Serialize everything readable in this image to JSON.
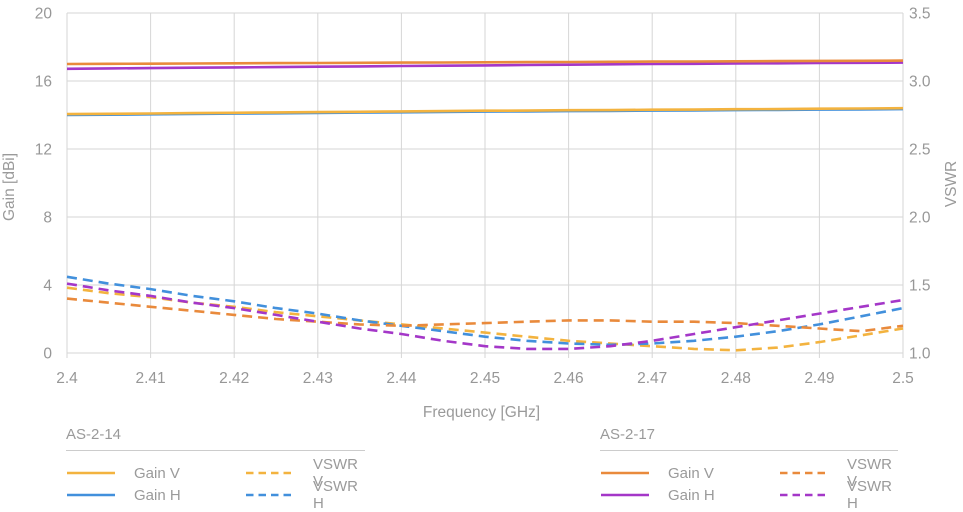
{
  "chart_data": {
    "type": "line",
    "xlabel": "Frequency [GHz]",
    "ylabel": "Gain [dBi]",
    "ylabel_right": "VSWR",
    "xlim": [
      2.4,
      2.5
    ],
    "ylim_left": [
      0,
      20
    ],
    "ylim_right": [
      1.0,
      3.5
    ],
    "grid": true,
    "x_ticks": [
      "2.4",
      "2.41",
      "2.42",
      "2.43",
      "2.44",
      "2.45",
      "2.46",
      "2.47",
      "2.48",
      "2.49",
      "2.5"
    ],
    "y_ticks_left": [
      "20",
      "16",
      "12",
      "8",
      "4",
      "0"
    ],
    "y_ticks_right": [
      "3.5",
      "3.0",
      "2.5",
      "2.0",
      "1.5",
      "1.0"
    ],
    "x": [
      2.4,
      2.405,
      2.41,
      2.415,
      2.42,
      2.425,
      2.43,
      2.435,
      2.44,
      2.445,
      2.45,
      2.455,
      2.46,
      2.465,
      2.47,
      2.475,
      2.48,
      2.485,
      2.49,
      2.495,
      2.5
    ],
    "series": [
      {
        "name": "AS-2-14 Gain V",
        "group": "AS-2-14",
        "label": "Gain V",
        "axis": "left",
        "style": "solid",
        "color": "#F3B33F",
        "values": [
          14.05,
          14.07,
          14.09,
          14.11,
          14.13,
          14.15,
          14.17,
          14.19,
          14.21,
          14.23,
          14.25,
          14.26,
          14.28,
          14.29,
          14.31,
          14.32,
          14.34,
          14.35,
          14.37,
          14.38,
          14.4
        ]
      },
      {
        "name": "AS-2-14 Gain H",
        "group": "AS-2-14",
        "label": "Gain H",
        "axis": "left",
        "style": "solid",
        "color": "#4290DC",
        "values": [
          14.0,
          14.02,
          14.04,
          14.06,
          14.08,
          14.1,
          14.12,
          14.14,
          14.16,
          14.18,
          14.2,
          14.21,
          14.23,
          14.24,
          14.26,
          14.27,
          14.29,
          14.3,
          14.32,
          14.33,
          14.35
        ]
      },
      {
        "name": "AS-2-17 Gain V",
        "group": "AS-2-17",
        "label": "Gain V",
        "axis": "left",
        "style": "solid",
        "color": "#E98A3C",
        "values": [
          17.0,
          17.01,
          17.02,
          17.03,
          17.04,
          17.05,
          17.06,
          17.07,
          17.08,
          17.09,
          17.1,
          17.11,
          17.12,
          17.13,
          17.14,
          17.15,
          17.16,
          17.17,
          17.18,
          17.19,
          17.2
        ]
      },
      {
        "name": "AS-2-17 Gain H",
        "group": "AS-2-17",
        "label": "Gain H",
        "axis": "left",
        "style": "solid",
        "color": "#A437C8",
        "values": [
          16.72,
          16.74,
          16.76,
          16.78,
          16.8,
          16.82,
          16.84,
          16.86,
          16.88,
          16.9,
          16.92,
          16.94,
          16.96,
          16.98,
          17.0,
          17.01,
          17.03,
          17.04,
          17.06,
          17.07,
          17.08
        ]
      },
      {
        "name": "AS-2-14 VSWR V",
        "group": "AS-2-14",
        "label": "VSWR V",
        "axis": "right",
        "style": "dashed",
        "color": "#F3B33F",
        "values": [
          1.48,
          1.44,
          1.41,
          1.37,
          1.34,
          1.3,
          1.27,
          1.24,
          1.21,
          1.18,
          1.15,
          1.12,
          1.09,
          1.07,
          1.05,
          1.03,
          1.02,
          1.04,
          1.08,
          1.13,
          1.18
        ]
      },
      {
        "name": "AS-2-14 VSWR H",
        "group": "AS-2-14",
        "label": "VSWR H",
        "axis": "right",
        "style": "dashed",
        "color": "#4290DC",
        "values": [
          1.56,
          1.51,
          1.47,
          1.42,
          1.38,
          1.33,
          1.29,
          1.24,
          1.2,
          1.16,
          1.12,
          1.09,
          1.07,
          1.06,
          1.07,
          1.09,
          1.12,
          1.16,
          1.21,
          1.27,
          1.33
        ]
      },
      {
        "name": "AS-2-17 VSWR V",
        "group": "AS-2-17",
        "label": "VSWR V",
        "axis": "right",
        "style": "dashed",
        "color": "#E98A3C",
        "values": [
          1.4,
          1.37,
          1.34,
          1.31,
          1.28,
          1.25,
          1.23,
          1.21,
          1.2,
          1.21,
          1.22,
          1.23,
          1.24,
          1.24,
          1.23,
          1.23,
          1.22,
          1.2,
          1.18,
          1.16,
          1.2
        ]
      },
      {
        "name": "AS-2-17 VSWR H",
        "group": "AS-2-17",
        "label": "VSWR H",
        "axis": "right",
        "style": "dashed",
        "color": "#A437C8",
        "values": [
          1.51,
          1.46,
          1.42,
          1.37,
          1.33,
          1.28,
          1.23,
          1.18,
          1.14,
          1.09,
          1.05,
          1.03,
          1.03,
          1.05,
          1.09,
          1.14,
          1.19,
          1.24,
          1.29,
          1.34,
          1.39
        ]
      }
    ]
  },
  "legend": {
    "groups": [
      {
        "title": "AS-2-14",
        "items": [
          {
            "label": "Gain V",
            "style": "solid",
            "color": "#F3B33F"
          },
          {
            "label": "Gain H",
            "style": "solid",
            "color": "#4290DC"
          },
          {
            "label": "VSWR V",
            "style": "dashed",
            "color": "#F3B33F"
          },
          {
            "label": "VSWR H",
            "style": "dashed",
            "color": "#4290DC"
          }
        ]
      },
      {
        "title": "AS-2-17",
        "items": [
          {
            "label": "Gain V",
            "style": "solid",
            "color": "#E98A3C"
          },
          {
            "label": "Gain H",
            "style": "solid",
            "color": "#A437C8"
          },
          {
            "label": "VSWR V",
            "style": "dashed",
            "color": "#E98A3C"
          },
          {
            "label": "VSWR H",
            "style": "dashed",
            "color": "#A437C8"
          }
        ]
      }
    ]
  },
  "style_colors": {
    "grid": "#d6d6d6",
    "tick_text": "#979797"
  }
}
